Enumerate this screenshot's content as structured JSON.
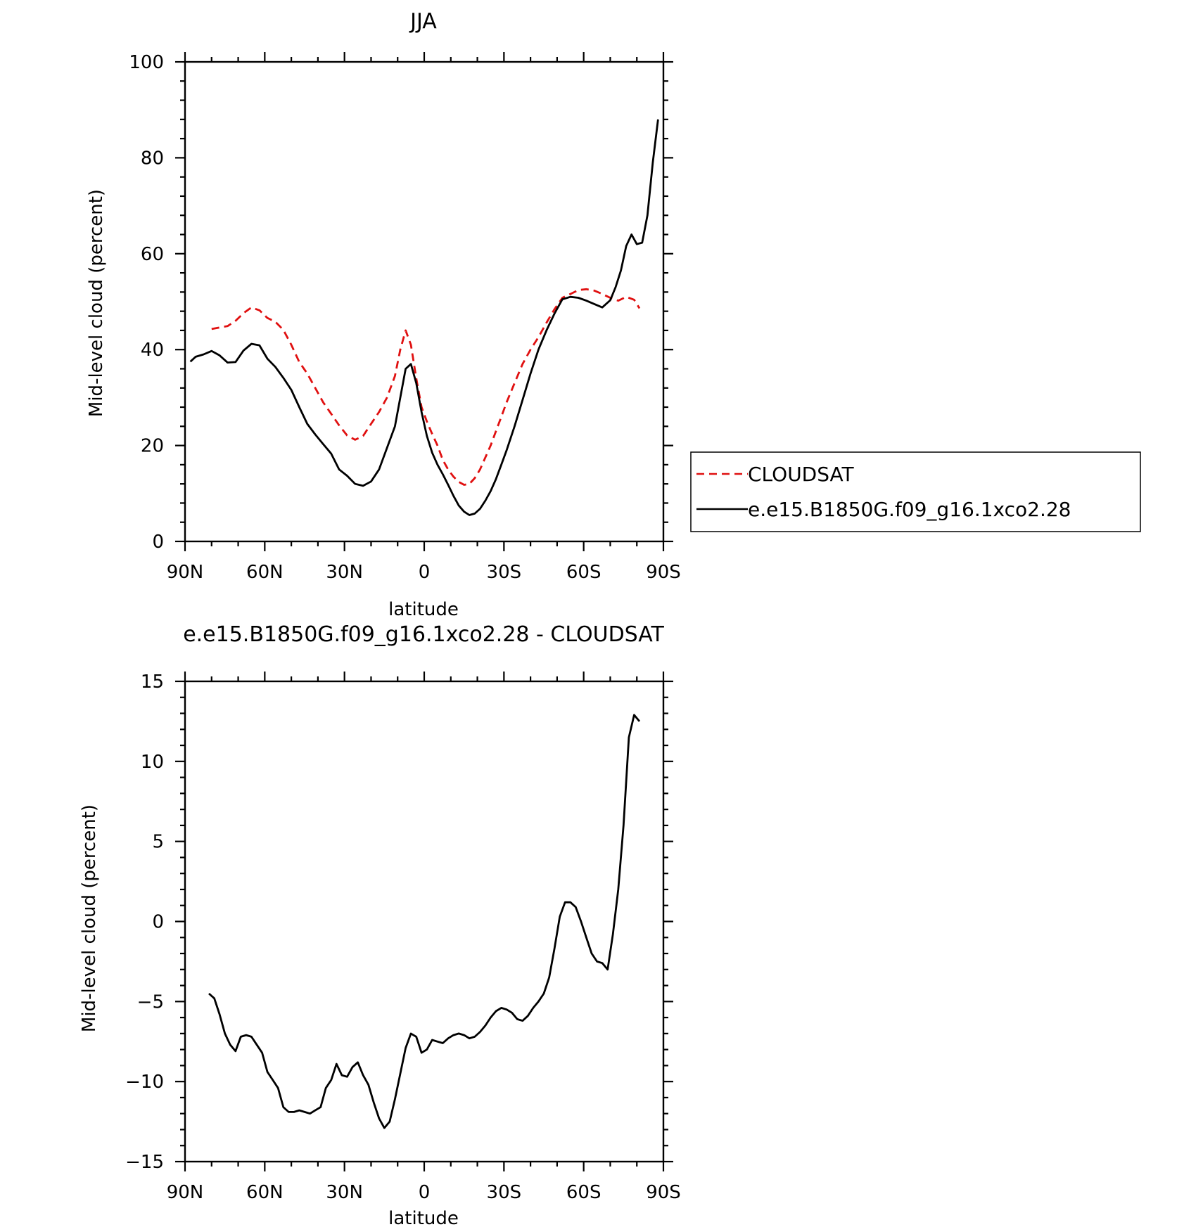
{
  "chart_data": [
    {
      "type": "line",
      "title": "JJA",
      "xlabel": "latitude",
      "ylabel": "Mid-level cloud (percent)",
      "xlim": [
        -90,
        90
      ],
      "ylim": [
        0,
        100
      ],
      "x_ticks": [
        "90N",
        "60N",
        "30N",
        "0",
        "30S",
        "60S",
        "90S"
      ],
      "y_ticks": [
        "0",
        "20",
        "40",
        "60",
        "80",
        "100"
      ],
      "legend": {
        "placement": "right",
        "entries": [
          "CLOUDSAT",
          "e.e15.B1850G.f09_g16.1xco2.28"
        ]
      },
      "series": [
        {
          "name": "CLOUDSAT",
          "color": "#e01010",
          "dash": true,
          "x": [
            -80,
            -77,
            -74,
            -71,
            -68,
            -65,
            -62,
            -59,
            -56,
            -53,
            -50,
            -47,
            -44,
            -41,
            -38,
            -35,
            -32,
            -29,
            -26,
            -23,
            -20,
            -17,
            -14,
            -11,
            -9,
            -7,
            -5,
            -3,
            -1,
            1,
            3,
            5,
            7,
            9,
            11,
            13,
            15,
            17,
            19,
            21,
            23,
            25,
            27,
            29,
            31,
            34,
            37,
            40,
            43,
            46,
            49,
            52,
            55,
            58,
            61,
            64,
            67,
            70,
            73,
            76,
            79,
            81
          ],
          "y": [
            44.3,
            44.6,
            44.9,
            46,
            47.6,
            48.8,
            48.2,
            46.6,
            45.8,
            44.1,
            41,
            37.4,
            35,
            32,
            29,
            26.6,
            24.2,
            22.1,
            21.2,
            22,
            24.5,
            27,
            30,
            34.5,
            40,
            44,
            41,
            34,
            28,
            25,
            22.4,
            20,
            17,
            15,
            13.5,
            12.4,
            11.8,
            12,
            13.2,
            15,
            17.5,
            20,
            23,
            26,
            29,
            33,
            37,
            40,
            42.6,
            45.6,
            48.4,
            50.8,
            51.6,
            52.4,
            52.6,
            52.3,
            51.6,
            50.8,
            50.2,
            51,
            50.4,
            48.6
          ]
        },
        {
          "name": "e.e15.B1850G.f09_g16.1xco2.28",
          "color": "#000000",
          "dash": false,
          "x": [
            -88,
            -86,
            -83,
            -80,
            -77,
            -74,
            -71,
            -68,
            -65,
            -62,
            -59,
            -56,
            -53,
            -50,
            -47,
            -44,
            -41,
            -38,
            -35,
            -32,
            -29,
            -26,
            -23,
            -20,
            -17,
            -14,
            -11,
            -9,
            -7,
            -5,
            -3,
            -1,
            1,
            3,
            5,
            7,
            9,
            11,
            13,
            15,
            17,
            19,
            21,
            23,
            25,
            27,
            29,
            31,
            34,
            37,
            40,
            43,
            46,
            49,
            52,
            55,
            58,
            61,
            64,
            67,
            70,
            72,
            74,
            76,
            78,
            80,
            82,
            84,
            86,
            88
          ],
          "y": [
            37.5,
            38.5,
            39,
            39.7,
            38.8,
            37.3,
            37.4,
            39.8,
            41.2,
            40.9,
            38.1,
            36.4,
            34.1,
            31.6,
            28,
            24.5,
            22.3,
            20.3,
            18.3,
            15,
            13.7,
            12,
            11.6,
            12.5,
            15,
            19.5,
            24,
            30,
            36,
            37,
            33,
            27,
            22,
            18.5,
            16,
            14,
            11.8,
            9.5,
            7.5,
            6.2,
            5.5,
            5.8,
            6.8,
            8.5,
            10.5,
            13,
            16,
            19,
            24,
            29.5,
            35,
            40,
            44,
            47.5,
            50.5,
            51,
            50.8,
            50.2,
            49.5,
            48.8,
            50.3,
            53,
            56.5,
            61.6,
            64,
            62,
            62.3,
            68,
            79,
            88
          ]
        }
      ]
    },
    {
      "type": "line",
      "title": "e.e15.B1850G.f09_g16.1xco2.28 - CLOUDSAT",
      "xlabel": "latitude",
      "ylabel": "Mid-level cloud (percent)",
      "xlim": [
        -90,
        90
      ],
      "ylim": [
        -15,
        15
      ],
      "x_ticks": [
        "90N",
        "60N",
        "30N",
        "0",
        "30S",
        "60S",
        "90S"
      ],
      "y_ticks": [
        "−15",
        "−10",
        "−5",
        "0",
        "5",
        "10",
        "15"
      ],
      "series": [
        {
          "color": "#000000",
          "dash": false,
          "x": [
            -81,
            -79,
            -77,
            -75,
            -73,
            -71,
            -69,
            -67,
            -65,
            -63,
            -61,
            -59,
            -57,
            -55,
            -53,
            -51,
            -49,
            -47,
            -45,
            -43,
            -41,
            -39,
            -37,
            -35,
            -33,
            -31,
            -29,
            -27,
            -25,
            -23,
            -21,
            -19,
            -17,
            -15,
            -13,
            -11,
            -9,
            -7,
            -5,
            -3,
            -1,
            1,
            3,
            5,
            7,
            9,
            11,
            13,
            15,
            17,
            19,
            21,
            23,
            25,
            27,
            29,
            31,
            33,
            35,
            37,
            39,
            41,
            43,
            45,
            47,
            49,
            51,
            53,
            55,
            57,
            59,
            61,
            63,
            65,
            67,
            69,
            71,
            73,
            75,
            77,
            79,
            81
          ],
          "y": [
            -4.5,
            -4.8,
            -5.8,
            -7,
            -7.7,
            -8.1,
            -7.2,
            -7.1,
            -7.2,
            -7.7,
            -8.2,
            -9.4,
            -9.9,
            -10.4,
            -11.6,
            -11.9,
            -11.9,
            -11.8,
            -11.9,
            -12,
            -11.8,
            -11.6,
            -10.4,
            -9.9,
            -8.9,
            -9.6,
            -9.7,
            -9.1,
            -8.8,
            -9.6,
            -10.2,
            -11.3,
            -12.3,
            -12.9,
            -12.5,
            -11.1,
            -9.5,
            -7.9,
            -7,
            -7.2,
            -8.2,
            -8.0,
            -7.4,
            -7.5,
            -7.6,
            -7.3,
            -7.1,
            -7,
            -7.1,
            -7.3,
            -7.2,
            -6.9,
            -6.5,
            -6,
            -5.6,
            -5.4,
            -5.5,
            -5.7,
            -6.1,
            -6.2,
            -5.9,
            -5.4,
            -5,
            -4.5,
            -3.5,
            -1.7,
            0.3,
            1.2,
            1.2,
            0.9,
            0,
            -1,
            -2,
            -2.5,
            -2.6,
            -3,
            -0.8,
            2,
            6,
            11.5,
            12.9,
            12.5
          ]
        }
      ]
    }
  ]
}
